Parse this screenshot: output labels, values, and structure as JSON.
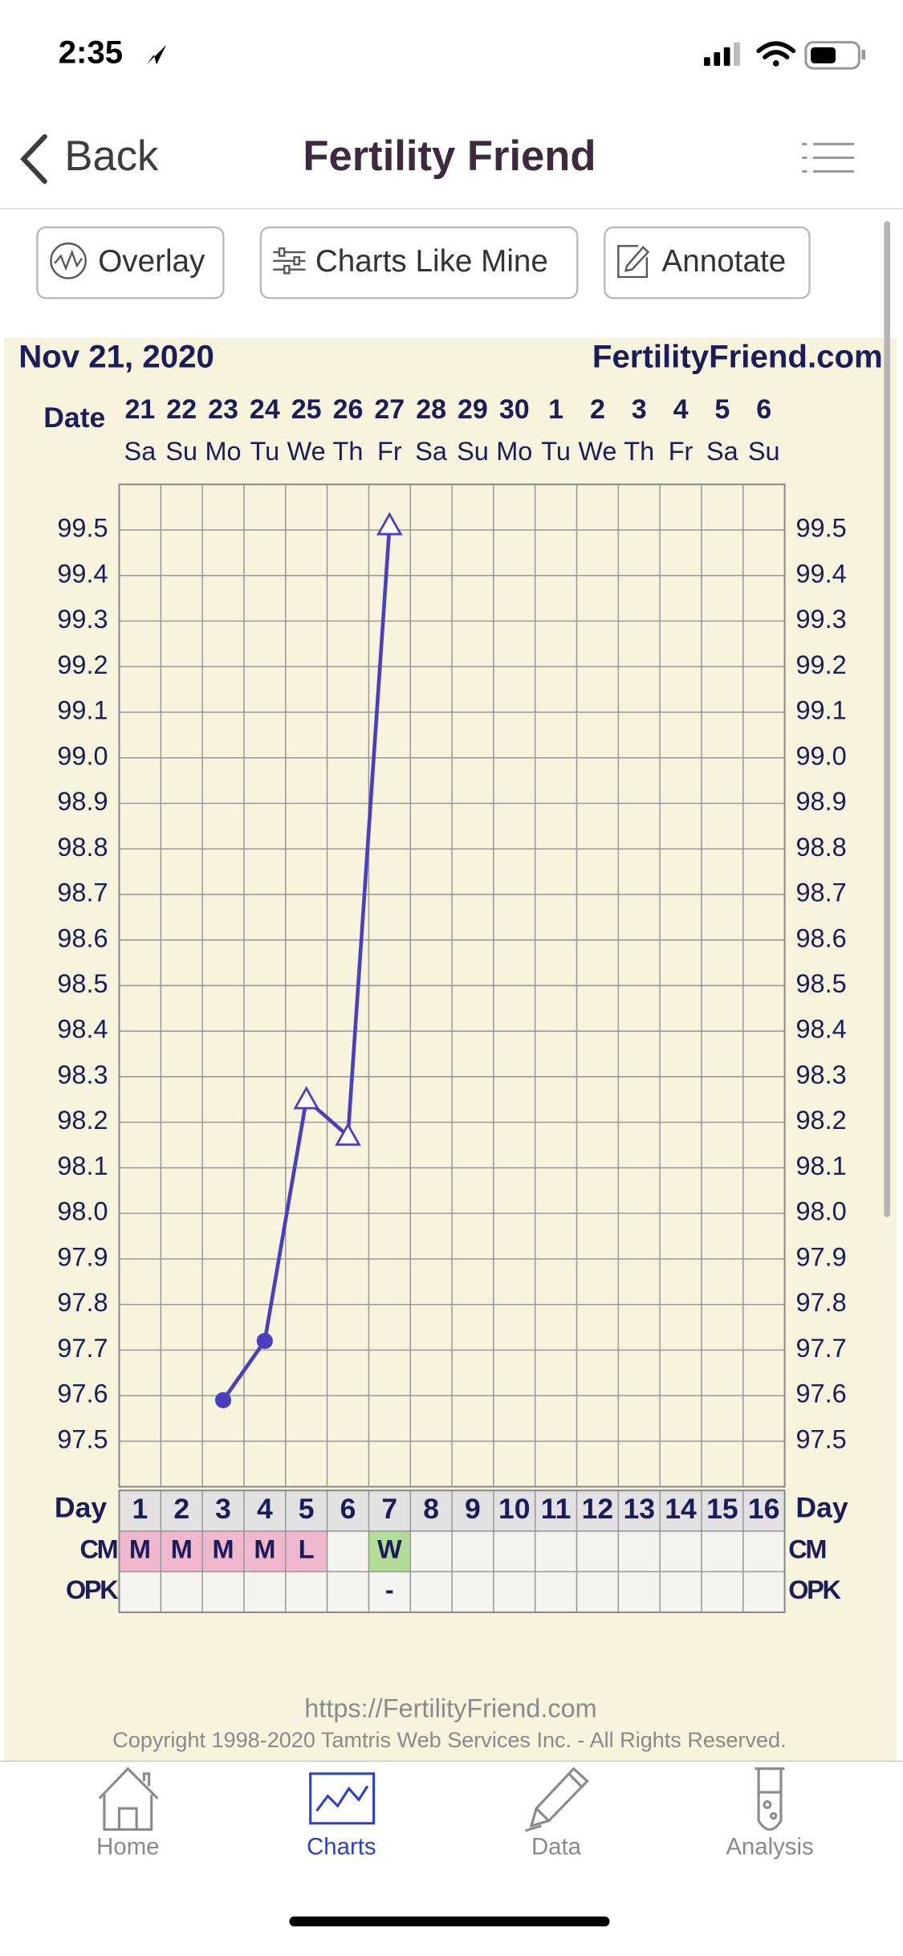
{
  "status_bar": {
    "time": "2:35"
  },
  "nav": {
    "back": "Back",
    "title": "Fertility Friend"
  },
  "toolbar": {
    "buttons": [
      "Overlay",
      "Charts Like Mine",
      "Annotate"
    ]
  },
  "chart_data": {
    "type": "line",
    "title": "Nov 21, 2020",
    "site": "FertilityFriend.com",
    "date_label": "Date",
    "categories": [
      "21",
      "22",
      "23",
      "24",
      "25",
      "26",
      "27",
      "28",
      "29",
      "30",
      "1",
      "2",
      "3",
      "4",
      "5",
      "6"
    ],
    "weekdays": [
      "Sa",
      "Su",
      "Mo",
      "Tu",
      "We",
      "Th",
      "Fr",
      "Sa",
      "Su",
      "Mo",
      "Tu",
      "We",
      "Th",
      "Fr",
      "Sa",
      "Su"
    ],
    "values": [
      null,
      null,
      97.59,
      97.72,
      98.25,
      98.17,
      99.51,
      null,
      null,
      null,
      null,
      null,
      null,
      null,
      null,
      null
    ],
    "markers": [
      null,
      null,
      "circle",
      "circle",
      "triangle",
      "triangle",
      "triangle",
      null,
      null,
      null,
      null,
      null,
      null,
      null,
      null,
      null
    ],
    "color": "#4b3fc0",
    "ylim": [
      97.4,
      99.6
    ],
    "yticks": [
      97.5,
      97.6,
      97.7,
      97.8,
      97.9,
      {
        "value": 98,
        "label": "98.0"
      },
      98.1,
      98.2,
      98.3,
      98.4,
      98.5,
      98.6,
      98.7,
      98.8,
      98.9,
      {
        "value": 99,
        "label": "99.0"
      },
      99.1,
      99.2,
      99.3,
      99.4,
      99.5
    ],
    "grid": true,
    "day_label": "Day",
    "cycle_days": [
      1,
      2,
      3,
      4,
      5,
      6,
      7,
      8,
      9,
      10,
      11,
      12,
      13,
      14,
      15,
      16
    ],
    "rows": [
      {
        "label": "CM",
        "values": [
          "M",
          "M",
          "M",
          "M",
          "L",
          null,
          "W",
          null,
          null,
          null,
          null,
          null,
          null,
          null,
          null,
          null
        ]
      },
      {
        "label": "OPK",
        "values": [
          null,
          null,
          null,
          null,
          null,
          null,
          "-",
          null,
          null,
          null,
          null,
          null,
          null,
          null,
          null,
          null
        ]
      }
    ],
    "cell_colors": {
      "M": "#efb8cd",
      "L": "#efb8cd",
      "W": "#b3dc96"
    }
  },
  "footer": {
    "url": "https://FertilityFriend.com",
    "copyright": "Copyright 1998-2020 Tamtris Web Services Inc. - All Rights Reserved."
  },
  "tab_bar": {
    "tabs": [
      "Home",
      "Charts",
      "Data",
      "Analysis"
    ],
    "active": 1,
    "active_color": "#2b3fd3"
  }
}
